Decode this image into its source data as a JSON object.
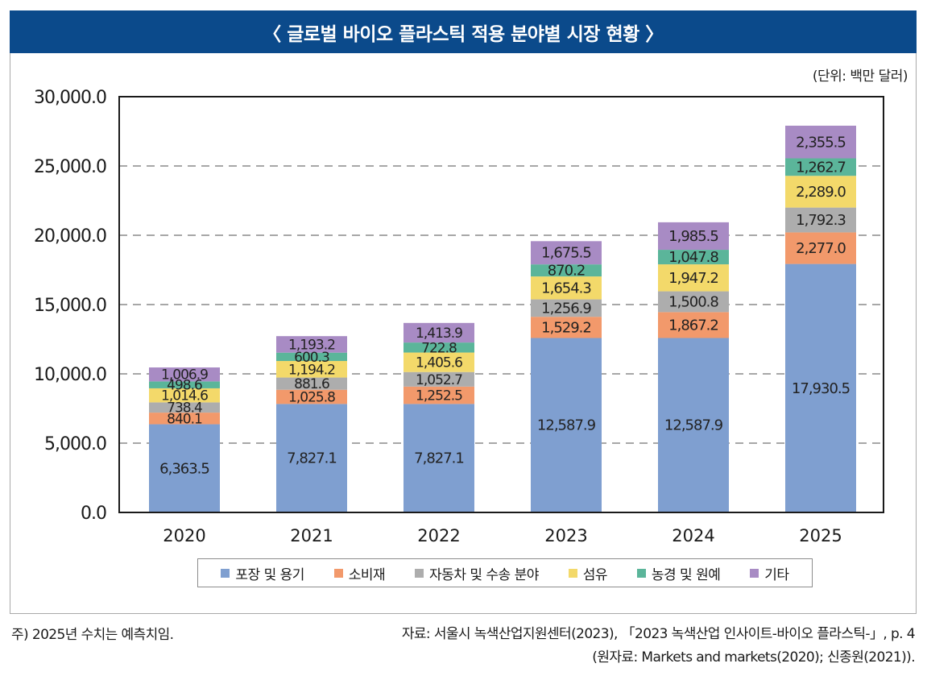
{
  "header": {
    "title": "〈 글로벌 바이오 플라스틱 적용 분야별 시장 현황 〉",
    "unit": "(단위: 백만 달러)"
  },
  "footer": {
    "note": "주) 2025년 수치는 예측치임.",
    "source_line1": "자료: 서울시 녹색산업지원센터(2023), 「2023 녹색산업 인사이트-바이오 플라스틱-」, p. 4",
    "source_line2": "(원자료: Markets and markets(2020); 신종원(2021))."
  },
  "chart_data": {
    "type": "bar",
    "stacked": true,
    "title": "〈 글로벌 바이오 플라스틱 적용 분야별 시장 현황 〉",
    "xlabel": "",
    "ylabel": "",
    "unit": "백만 달러",
    "ylim": [
      0,
      30000
    ],
    "yticks": [
      0,
      5000,
      10000,
      15000,
      20000,
      25000,
      30000
    ],
    "ytick_labels": [
      "0.0",
      "5,000.0",
      "10,000.0",
      "15,000.0",
      "20,000.0",
      "25,000.0",
      "30,000.0"
    ],
    "grid": "horizontal-dashed",
    "legend_position": "bottom",
    "categories": [
      "2020",
      "2021",
      "2022",
      "2023",
      "2024",
      "2025"
    ],
    "series": [
      {
        "name": "포장 및 용기",
        "color": "#7f9fd0",
        "values": [
          6363.5,
          7827.1,
          7827.1,
          12587.9,
          12587.9,
          17930.5
        ],
        "labels": [
          "6,363.5",
          "7,827.1",
          "7,827.1",
          "12,587.9",
          "12,587.9",
          "17,930.5"
        ]
      },
      {
        "name": "소비재",
        "color": "#f2996b",
        "values": [
          840.1,
          1025.8,
          1252.5,
          1529.2,
          1867.2,
          2277.0
        ],
        "labels": [
          "840.1",
          "1,025.8",
          "1,252.5",
          "1,529.2",
          "1,867.2",
          "2,277.0"
        ]
      },
      {
        "name": "자동차 및 수송 분야",
        "color": "#adadad",
        "values": [
          738.4,
          881.6,
          1052.7,
          1256.9,
          1500.8,
          1792.3
        ],
        "labels": [
          "738.4",
          "881.6",
          "1,052.7",
          "1,256.9",
          "1,500.8",
          "1,792.3"
        ]
      },
      {
        "name": "섬유",
        "color": "#f3d96a",
        "values": [
          1014.6,
          1194.2,
          1405.6,
          1654.3,
          1947.2,
          2289.0
        ],
        "labels": [
          "1,014.6",
          "1,194.2",
          "1,405.6",
          "1,654.3",
          "1,947.2",
          "2,289.0"
        ]
      },
      {
        "name": "농경 및 원예",
        "color": "#5bb59a",
        "values": [
          498.6,
          600.3,
          722.8,
          870.2,
          1047.8,
          1262.7
        ],
        "labels": [
          "498.6",
          "600.3",
          "722.8",
          "870.2",
          "1,047.8",
          "1,262.7"
        ]
      },
      {
        "name": "기타",
        "color": "#a88bc4",
        "values": [
          1006.9,
          1193.2,
          1413.9,
          1675.5,
          1985.5,
          2355.5
        ],
        "labels": [
          "1,006.9",
          "1,193.2",
          "1,413.9",
          "1,675.5",
          "1,985.5",
          "2,355.5"
        ]
      }
    ],
    "annotations": [
      "2025년 수치는 예측치임"
    ]
  }
}
